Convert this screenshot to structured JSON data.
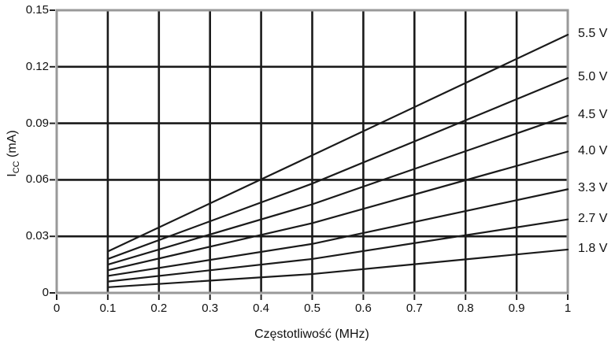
{
  "chart_data": {
    "type": "line",
    "title": "",
    "xlabel": "Częstotliwość (MHz)",
    "ylabel": "ICC (mA)",
    "ylabel_parts": {
      "main": "I",
      "sub": "CC",
      "unit": " (mA)"
    },
    "xlim": [
      0,
      1
    ],
    "ylim": [
      0,
      0.15
    ],
    "x_ticks": [
      0,
      0.1,
      0.2,
      0.3,
      0.4,
      0.5,
      0.6,
      0.7,
      0.8,
      0.9,
      1
    ],
    "x_tick_labels": [
      "0",
      "0.1",
      "0.2",
      "0.3",
      "0.4",
      "0.5",
      "0.6",
      "0.7",
      "0.8",
      "0.9",
      "1"
    ],
    "y_ticks": [
      0,
      0.03,
      0.06,
      0.09,
      0.12,
      0.15
    ],
    "y_tick_labels": [
      "0",
      "0.03",
      "0.06",
      "0.09",
      "0.12",
      "0.15"
    ],
    "grid": true,
    "legend_position": "right-at-line-ends",
    "x": [
      0.1,
      0.5,
      1.0
    ],
    "series": [
      {
        "name": "5.5 V",
        "values": [
          0.022,
          0.073,
          0.137
        ]
      },
      {
        "name": "5.0 V",
        "values": [
          0.018,
          0.058,
          0.114
        ]
      },
      {
        "name": "4.5 V",
        "values": [
          0.015,
          0.047,
          0.094
        ]
      },
      {
        "name": "4.0 V",
        "values": [
          0.012,
          0.037,
          0.075
        ]
      },
      {
        "name": "3.3 V",
        "values": [
          0.009,
          0.026,
          0.055
        ]
      },
      {
        "name": "2.7 V",
        "values": [
          0.006,
          0.018,
          0.039
        ]
      },
      {
        "name": "1.8 V",
        "values": [
          0.003,
          0.01,
          0.023
        ]
      }
    ],
    "colors": {
      "line": "#1a1a1a",
      "grid": "#1a1a1a",
      "frame": "#999999",
      "tick": "#222222",
      "text": "#111111",
      "background": "#ffffff"
    }
  }
}
